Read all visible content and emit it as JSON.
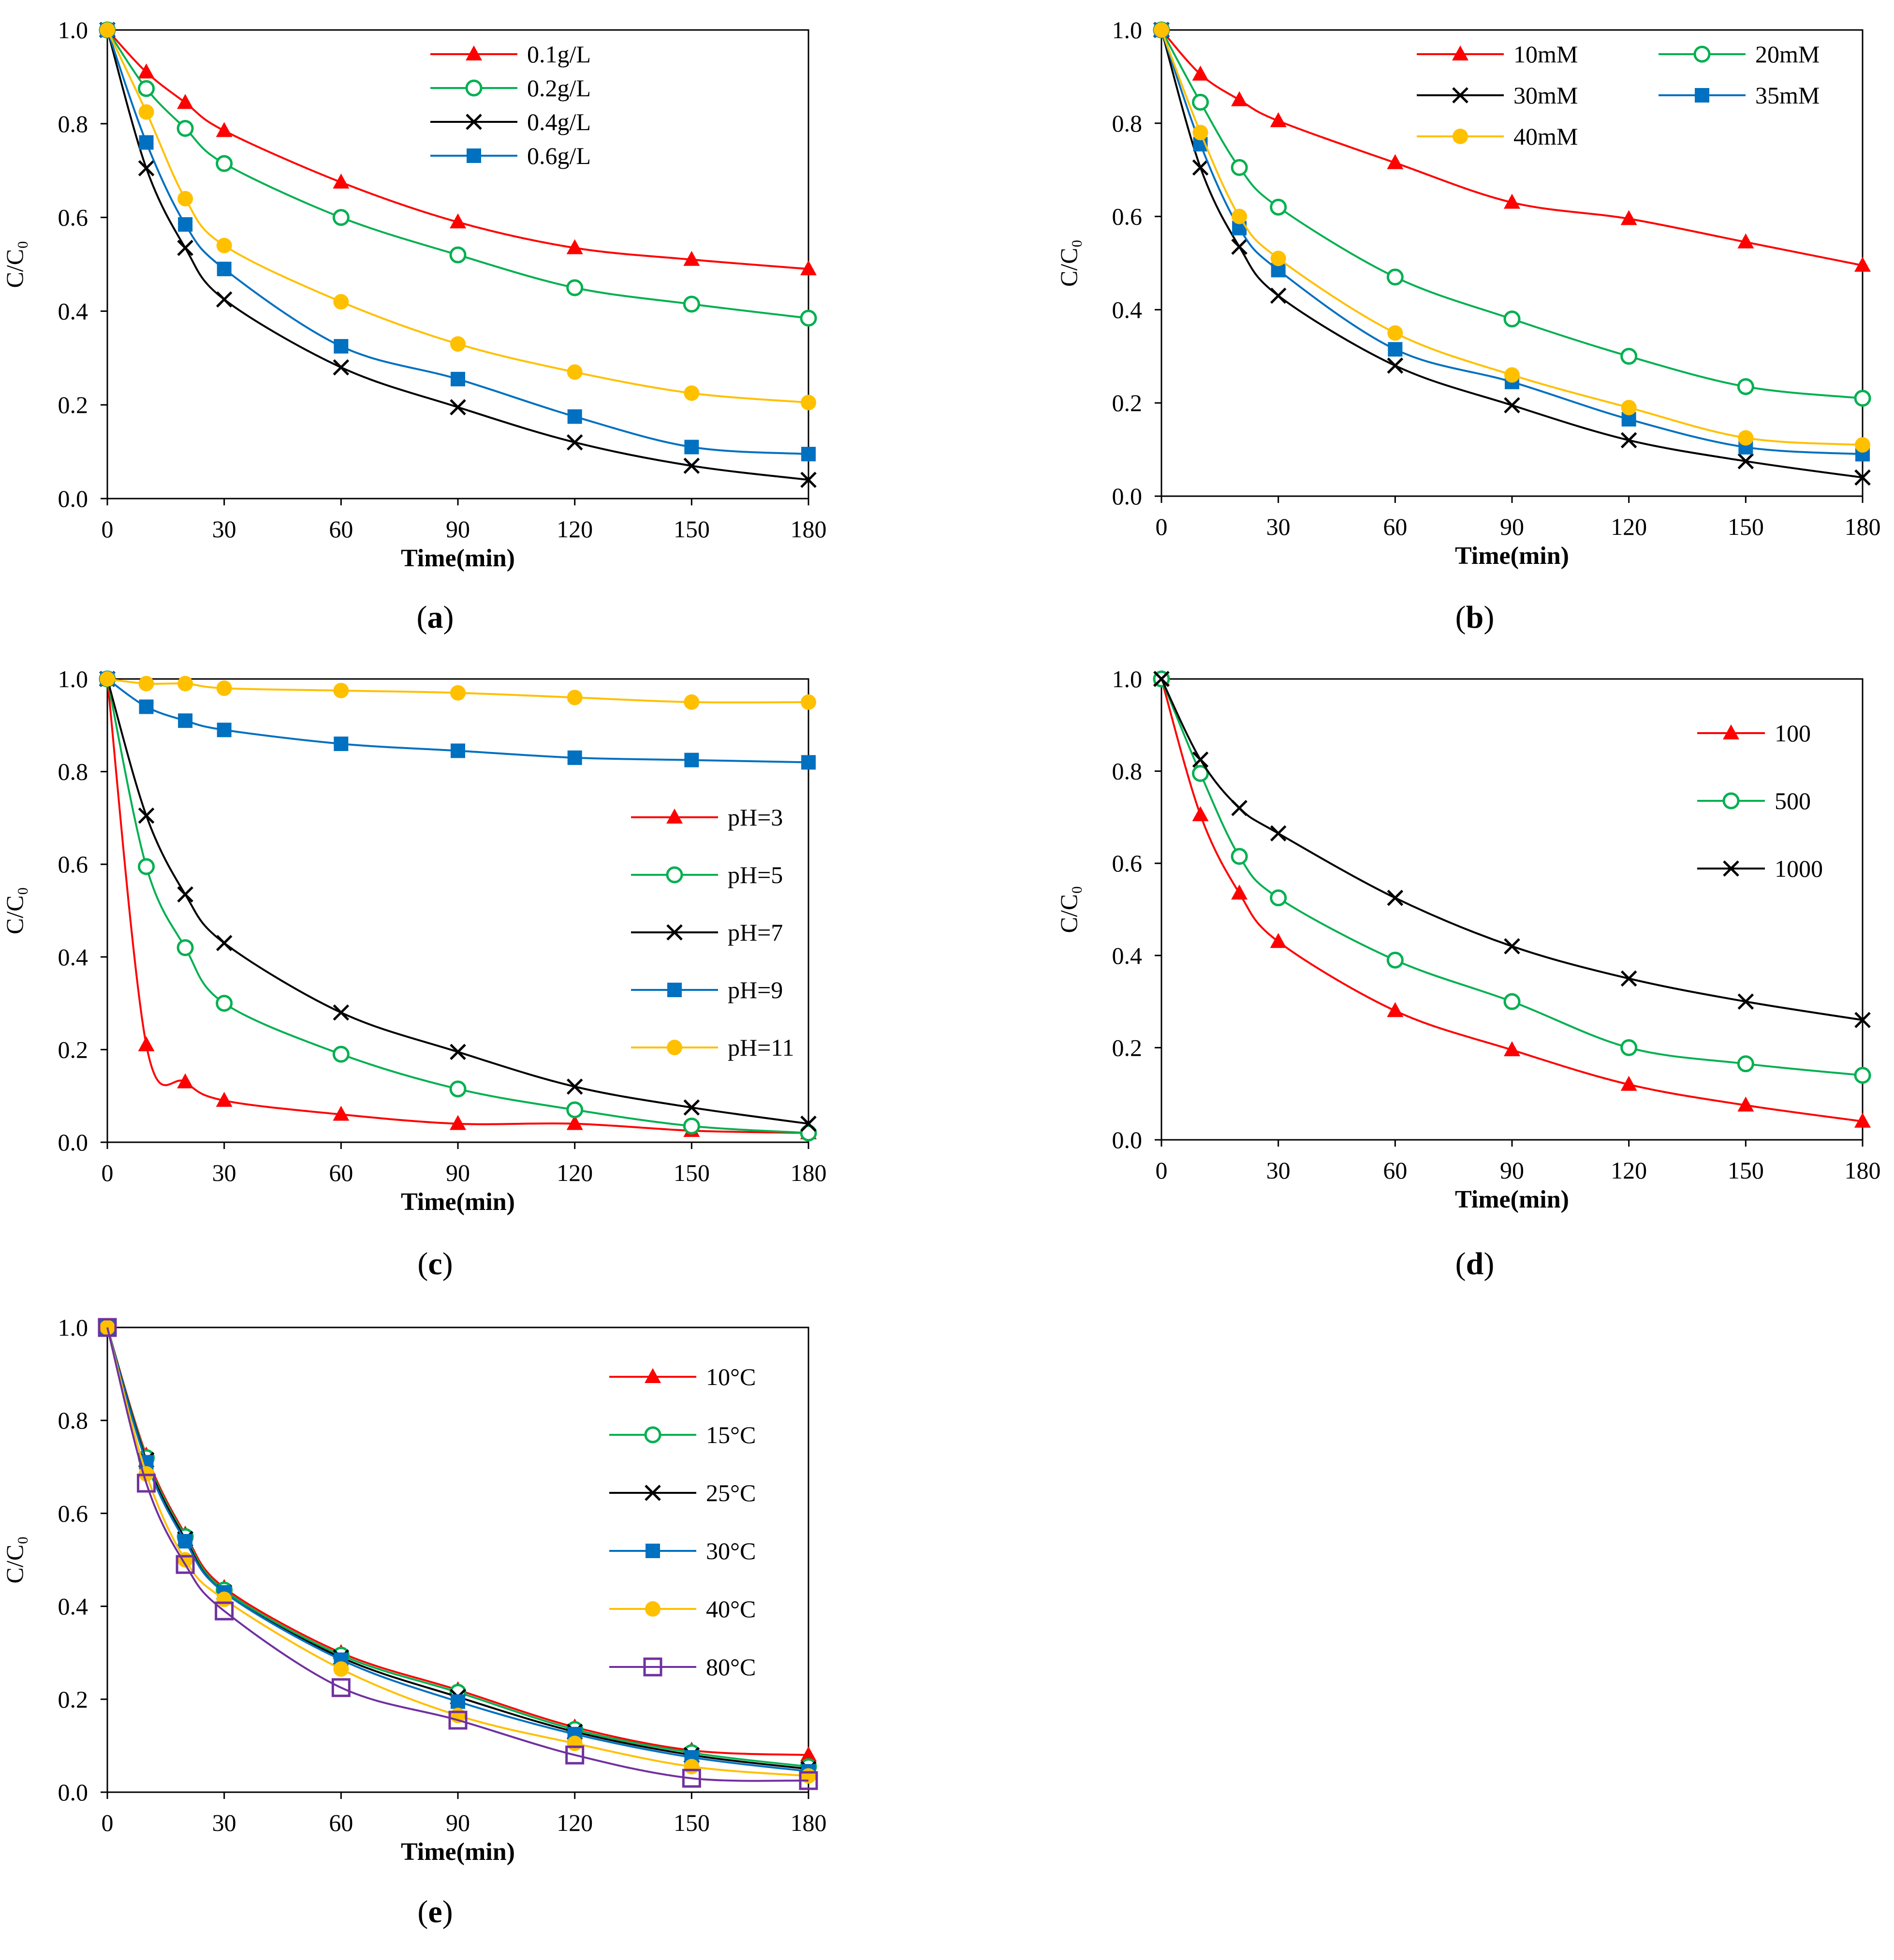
{
  "chart_data": [
    {
      "type": "line",
      "panel_label": "a",
      "xlabel": "Time(min)",
      "ylabel": "C/C₀",
      "xlim": [
        0,
        180
      ],
      "ylim": [
        0,
        1.0
      ],
      "xticks": [
        0,
        30,
        60,
        90,
        120,
        150,
        180
      ],
      "yticks": [
        "0.0",
        "0.2",
        "0.4",
        "0.6",
        "0.8",
        "1.0"
      ],
      "x": [
        0,
        10,
        20,
        30,
        60,
        90,
        120,
        150,
        180
      ],
      "legend_position": "top-center",
      "legend_columns": 1,
      "series": [
        {
          "name": "0.1g/L",
          "color": "#ff0000",
          "marker": "triangle",
          "values": [
            1.0,
            0.91,
            0.845,
            0.785,
            0.675,
            0.59,
            0.535,
            0.51,
            0.49
          ]
        },
        {
          "name": "0.2g/L",
          "color": "#00b050",
          "marker": "circle-open",
          "values": [
            1.0,
            0.875,
            0.79,
            0.715,
            0.6,
            0.52,
            0.45,
            0.415,
            0.385
          ]
        },
        {
          "name": "0.4g/L",
          "color": "#000000",
          "marker": "x",
          "values": [
            1.0,
            0.705,
            0.535,
            0.425,
            0.28,
            0.195,
            0.12,
            0.07,
            0.04
          ]
        },
        {
          "name": "0.6g/L",
          "color": "#0070c0",
          "marker": "square",
          "values": [
            1.0,
            0.76,
            0.585,
            0.49,
            0.325,
            0.255,
            0.175,
            0.11,
            0.095
          ]
        },
        {
          "name": "",
          "color": "#ffc000",
          "marker": "circle",
          "values": [
            1.0,
            0.825,
            0.64,
            0.54,
            0.42,
            0.33,
            0.27,
            0.225,
            0.205
          ]
        }
      ]
    },
    {
      "type": "line",
      "panel_label": "b",
      "xlabel": "Time(min)",
      "ylabel": "C/C₀",
      "xlim": [
        0,
        180
      ],
      "ylim": [
        0,
        1.0
      ],
      "xticks": [
        0,
        30,
        60,
        90,
        120,
        150,
        180
      ],
      "yticks": [
        "0.0",
        "0.2",
        "0.4",
        "0.6",
        "0.8",
        "1.0"
      ],
      "x": [
        0,
        10,
        20,
        30,
        60,
        90,
        120,
        150,
        180
      ],
      "legend_position": "top-right",
      "legend_columns": 2,
      "series": [
        {
          "name": "10mM",
          "color": "#ff0000",
          "marker": "triangle",
          "values": [
            1.0,
            0.905,
            0.85,
            0.805,
            0.715,
            0.63,
            0.595,
            0.545,
            0.495
          ]
        },
        {
          "name": "20mM",
          "color": "#00b050",
          "marker": "circle-open",
          "values": [
            1.0,
            0.845,
            0.705,
            0.62,
            0.47,
            0.38,
            0.3,
            0.235,
            0.21
          ]
        },
        {
          "name": "30mM",
          "color": "#000000",
          "marker": "x",
          "values": [
            1.0,
            0.705,
            0.535,
            0.43,
            0.28,
            0.195,
            0.12,
            0.075,
            0.04
          ]
        },
        {
          "name": "35mM",
          "color": "#0070c0",
          "marker": "square",
          "values": [
            1.0,
            0.755,
            0.575,
            0.485,
            0.315,
            0.245,
            0.165,
            0.105,
            0.09
          ]
        },
        {
          "name": "40mM",
          "color": "#ffc000",
          "marker": "circle",
          "values": [
            1.0,
            0.78,
            0.6,
            0.51,
            0.35,
            0.26,
            0.19,
            0.125,
            0.11
          ]
        }
      ]
    },
    {
      "type": "line",
      "panel_label": "c",
      "xlabel": "Time(min)",
      "ylabel": "C/C₀",
      "xlim": [
        0,
        180
      ],
      "ylim": [
        0,
        1.0
      ],
      "xticks": [
        0,
        30,
        60,
        90,
        120,
        150,
        180
      ],
      "yticks": [
        "0.0",
        "0.2",
        "0.4",
        "0.6",
        "0.8",
        "1.0"
      ],
      "x": [
        0,
        10,
        20,
        30,
        60,
        90,
        120,
        150,
        180
      ],
      "legend_position": "center-right",
      "legend_columns": 1,
      "series": [
        {
          "name": "pH=3",
          "color": "#ff0000",
          "marker": "triangle",
          "values": [
            1.0,
            0.21,
            0.13,
            0.09,
            0.06,
            0.04,
            0.04,
            0.025,
            0.02
          ]
        },
        {
          "name": "pH=5",
          "color": "#00b050",
          "marker": "circle-open",
          "values": [
            1.0,
            0.595,
            0.42,
            0.3,
            0.19,
            0.115,
            0.07,
            0.035,
            0.02
          ]
        },
        {
          "name": "pH=7",
          "color": "#000000",
          "marker": "x",
          "values": [
            1.0,
            0.705,
            0.535,
            0.43,
            0.28,
            0.195,
            0.12,
            0.075,
            0.04
          ]
        },
        {
          "name": "pH=9",
          "color": "#0070c0",
          "marker": "square",
          "values": [
            1.0,
            0.94,
            0.91,
            0.89,
            0.86,
            0.845,
            0.83,
            0.825,
            0.82
          ]
        },
        {
          "name": "pH=11",
          "color": "#ffc000",
          "marker": "circle",
          "values": [
            1.0,
            0.99,
            0.99,
            0.98,
            0.975,
            0.97,
            0.96,
            0.95,
            0.95
          ]
        }
      ]
    },
    {
      "type": "line",
      "panel_label": "d",
      "xlabel": "Time(min)",
      "ylabel": "C/C₀",
      "xlim": [
        0,
        180
      ],
      "ylim": [
        0,
        1.0
      ],
      "xticks": [
        0,
        30,
        60,
        90,
        120,
        150,
        180
      ],
      "yticks": [
        "0.0",
        "0.2",
        "0.4",
        "0.6",
        "0.8",
        "1.0"
      ],
      "x": [
        0,
        10,
        20,
        30,
        60,
        90,
        120,
        150,
        180
      ],
      "legend_position": "top-right",
      "legend_columns": 1,
      "series": [
        {
          "name": "100",
          "color": "#ff0000",
          "marker": "triangle",
          "values": [
            1.0,
            0.705,
            0.535,
            0.43,
            0.28,
            0.195,
            0.12,
            0.075,
            0.04
          ]
        },
        {
          "name": "500",
          "color": "#00b050",
          "marker": "circle-open",
          "values": [
            1.0,
            0.795,
            0.615,
            0.525,
            0.39,
            0.3,
            0.2,
            0.165,
            0.14
          ]
        },
        {
          "name": "1000",
          "color": "#000000",
          "marker": "x",
          "values": [
            1.0,
            0.825,
            0.72,
            0.665,
            0.525,
            0.42,
            0.35,
            0.3,
            0.26
          ]
        }
      ]
    },
    {
      "type": "line",
      "panel_label": "e",
      "xlabel": "Time(min)",
      "ylabel": "C/C₀",
      "xlim": [
        0,
        180
      ],
      "ylim": [
        0,
        1.0
      ],
      "xticks": [
        0,
        30,
        60,
        90,
        120,
        150,
        180
      ],
      "yticks": [
        "0.0",
        "0.2",
        "0.4",
        "0.6",
        "0.8",
        "1.0"
      ],
      "x": [
        0,
        10,
        20,
        30,
        60,
        90,
        120,
        150,
        180
      ],
      "legend_position": "top-right",
      "legend_columns": 1,
      "series": [
        {
          "name": "10°C",
          "color": "#ff0000",
          "marker": "triangle",
          "values": [
            1.0,
            0.725,
            0.555,
            0.44,
            0.3,
            0.22,
            0.14,
            0.09,
            0.08
          ]
        },
        {
          "name": "15°C",
          "color": "#00b050",
          "marker": "circle-open",
          "values": [
            1.0,
            0.72,
            0.55,
            0.435,
            0.295,
            0.215,
            0.135,
            0.085,
            0.055
          ]
        },
        {
          "name": "25°C",
          "color": "#000000",
          "marker": "x",
          "values": [
            1.0,
            0.715,
            0.545,
            0.43,
            0.29,
            0.205,
            0.13,
            0.08,
            0.05
          ]
        },
        {
          "name": "30°C",
          "color": "#0070c0",
          "marker": "square",
          "values": [
            1.0,
            0.71,
            0.54,
            0.43,
            0.285,
            0.195,
            0.125,
            0.075,
            0.045
          ]
        },
        {
          "name": "40°C",
          "color": "#ffc000",
          "marker": "circle",
          "values": [
            1.0,
            0.685,
            0.5,
            0.415,
            0.265,
            0.165,
            0.105,
            0.055,
            0.035
          ]
        },
        {
          "name": "80°C",
          "color": "#7030a0",
          "marker": "square-open",
          "values": [
            1.0,
            0.665,
            0.49,
            0.39,
            0.225,
            0.155,
            0.08,
            0.03,
            0.025
          ]
        }
      ]
    }
  ]
}
